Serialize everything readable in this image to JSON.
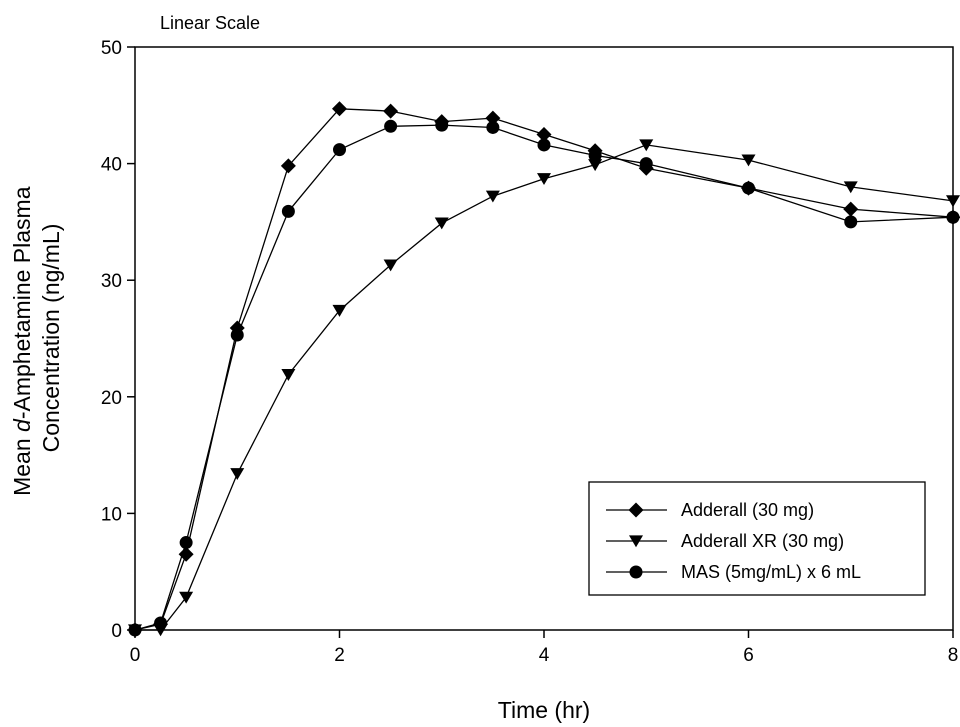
{
  "chart_data": {
    "type": "line",
    "annotation": "Linear Scale",
    "xlabel": "Time (hr)",
    "ylabel_prefix": "Mean ",
    "ylabel_italic": "d",
    "ylabel_rest": "-Amphetamine Plasma",
    "ylabel_line2": "Concentration (ng/mL)",
    "xlim": [
      0,
      8
    ],
    "ylim": [
      0,
      50
    ],
    "xticks": [
      0,
      2,
      4,
      6,
      8
    ],
    "yticks": [
      0,
      10,
      20,
      30,
      40,
      50
    ],
    "grid": false,
    "legend_position": "bottom-right",
    "series": [
      {
        "name": "Adderall (30 mg)",
        "marker": "diamond",
        "color": "#000000",
        "points": [
          [
            0,
            0
          ],
          [
            0.25,
            0.5
          ],
          [
            0.5,
            6.5
          ],
          [
            1,
            25.9
          ],
          [
            1.5,
            39.8
          ],
          [
            2,
            44.7
          ],
          [
            2.5,
            44.5
          ],
          [
            3,
            43.6
          ],
          [
            3.5,
            43.9
          ],
          [
            4,
            42.5
          ],
          [
            4.5,
            41.1
          ],
          [
            5,
            39.6
          ],
          [
            6,
            37.9
          ],
          [
            7,
            36.1
          ],
          [
            8,
            35.4
          ]
        ]
      },
      {
        "name": "Adderall XR (30 mg)",
        "marker": "triangle-down",
        "color": "#000000",
        "points": [
          [
            0,
            0
          ],
          [
            0.25,
            0
          ],
          [
            0.5,
            2.8
          ],
          [
            1,
            13.4
          ],
          [
            1.5,
            21.9
          ],
          [
            2,
            27.4
          ],
          [
            2.5,
            31.3
          ],
          [
            3,
            34.9
          ],
          [
            3.5,
            37.2
          ],
          [
            4,
            38.7
          ],
          [
            4.5,
            39.9
          ],
          [
            5,
            41.6
          ],
          [
            6,
            40.3
          ],
          [
            7,
            38.0
          ],
          [
            8,
            36.8
          ]
        ]
      },
      {
        "name": "MAS (5mg/mL) x 6 mL",
        "marker": "circle",
        "color": "#000000",
        "points": [
          [
            0,
            0
          ],
          [
            0.25,
            0.6
          ],
          [
            0.5,
            7.5
          ],
          [
            1,
            25.3
          ],
          [
            1.5,
            35.9
          ],
          [
            2,
            41.2
          ],
          [
            2.5,
            43.2
          ],
          [
            3,
            43.3
          ],
          [
            3.5,
            43.1
          ],
          [
            4,
            41.6
          ],
          [
            4.5,
            40.7
          ],
          [
            5,
            40.0
          ],
          [
            6,
            37.9
          ],
          [
            7,
            35.0
          ],
          [
            8,
            35.4
          ]
        ]
      }
    ]
  }
}
